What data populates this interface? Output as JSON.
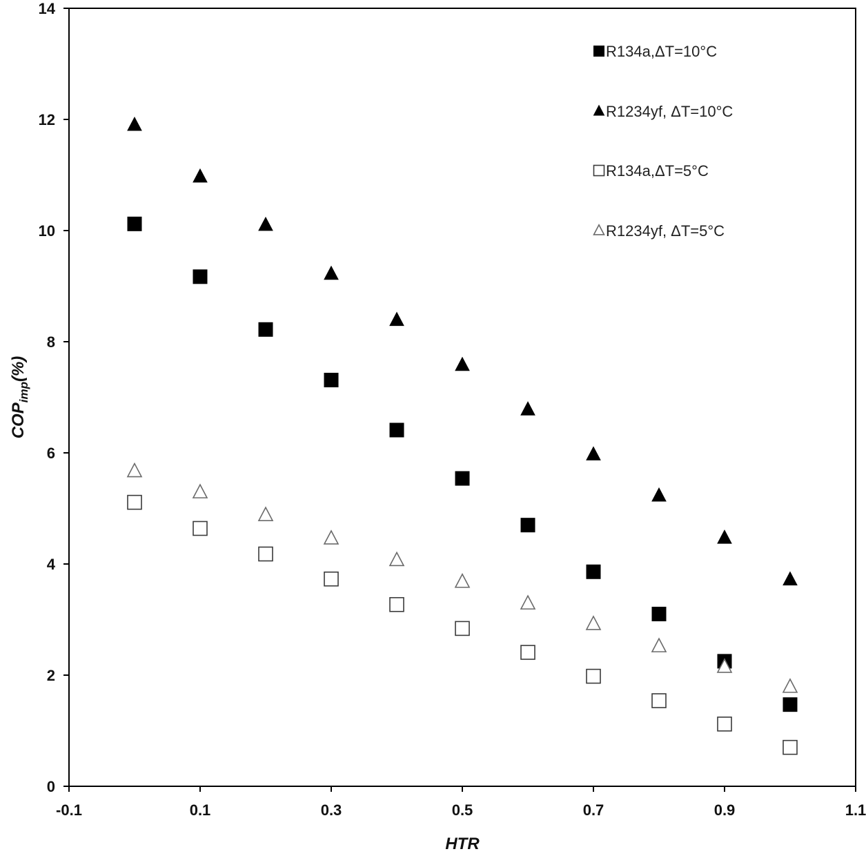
{
  "chart_data": {
    "type": "scatter",
    "xlabel": "HTR",
    "ylabel_main": "COP",
    "ylabel_sub": "imp",
    "ylabel_suffix": "(%)",
    "xlim": [
      -0.1,
      1.1
    ],
    "ylim": [
      0,
      14
    ],
    "x_ticks": [
      -0.1,
      0.1,
      0.3,
      0.5,
      0.7,
      0.9,
      1.1
    ],
    "x_tick_labels": [
      "-0.1",
      "0.1",
      "0.3",
      "0.5",
      "0.7",
      "0.9",
      "1.1"
    ],
    "y_ticks": [
      0,
      2,
      4,
      6,
      8,
      10,
      12,
      14
    ],
    "y_tick_labels": [
      "0",
      "2",
      "4",
      "6",
      "8",
      "10",
      "12",
      "14"
    ],
    "grid": false,
    "legend_position": "top-right",
    "x": [
      0,
      0.1,
      0.2,
      0.3,
      0.4,
      0.5,
      0.6,
      0.7,
      0.8,
      0.9,
      1.0
    ],
    "series": [
      {
        "name": "R134a,ΔT=10°C",
        "marker": "square-filled",
        "color": "#000000",
        "values": [
          10.12,
          9.17,
          8.22,
          7.31,
          6.41,
          5.54,
          4.7,
          3.86,
          3.1,
          2.25,
          1.47
        ]
      },
      {
        "name": "R1234yf, ΔT=10°C",
        "marker": "triangle-filled",
        "color": "#000000",
        "values": [
          11.9,
          10.97,
          10.1,
          9.22,
          8.39,
          7.58,
          6.78,
          5.97,
          5.23,
          4.47,
          3.72
        ]
      },
      {
        "name": "R134a,ΔT=5°C",
        "marker": "square-open",
        "color": "#3a3a3a",
        "values": [
          5.11,
          4.64,
          4.18,
          3.73,
          3.27,
          2.84,
          2.41,
          1.98,
          1.54,
          1.12,
          0.7
        ]
      },
      {
        "name": "R1234yf, ΔT=5°C",
        "marker": "triangle-open",
        "color": "#6a6a6a",
        "values": [
          5.67,
          5.29,
          4.88,
          4.46,
          4.07,
          3.68,
          3.29,
          2.92,
          2.52,
          2.15,
          1.79
        ]
      }
    ]
  }
}
